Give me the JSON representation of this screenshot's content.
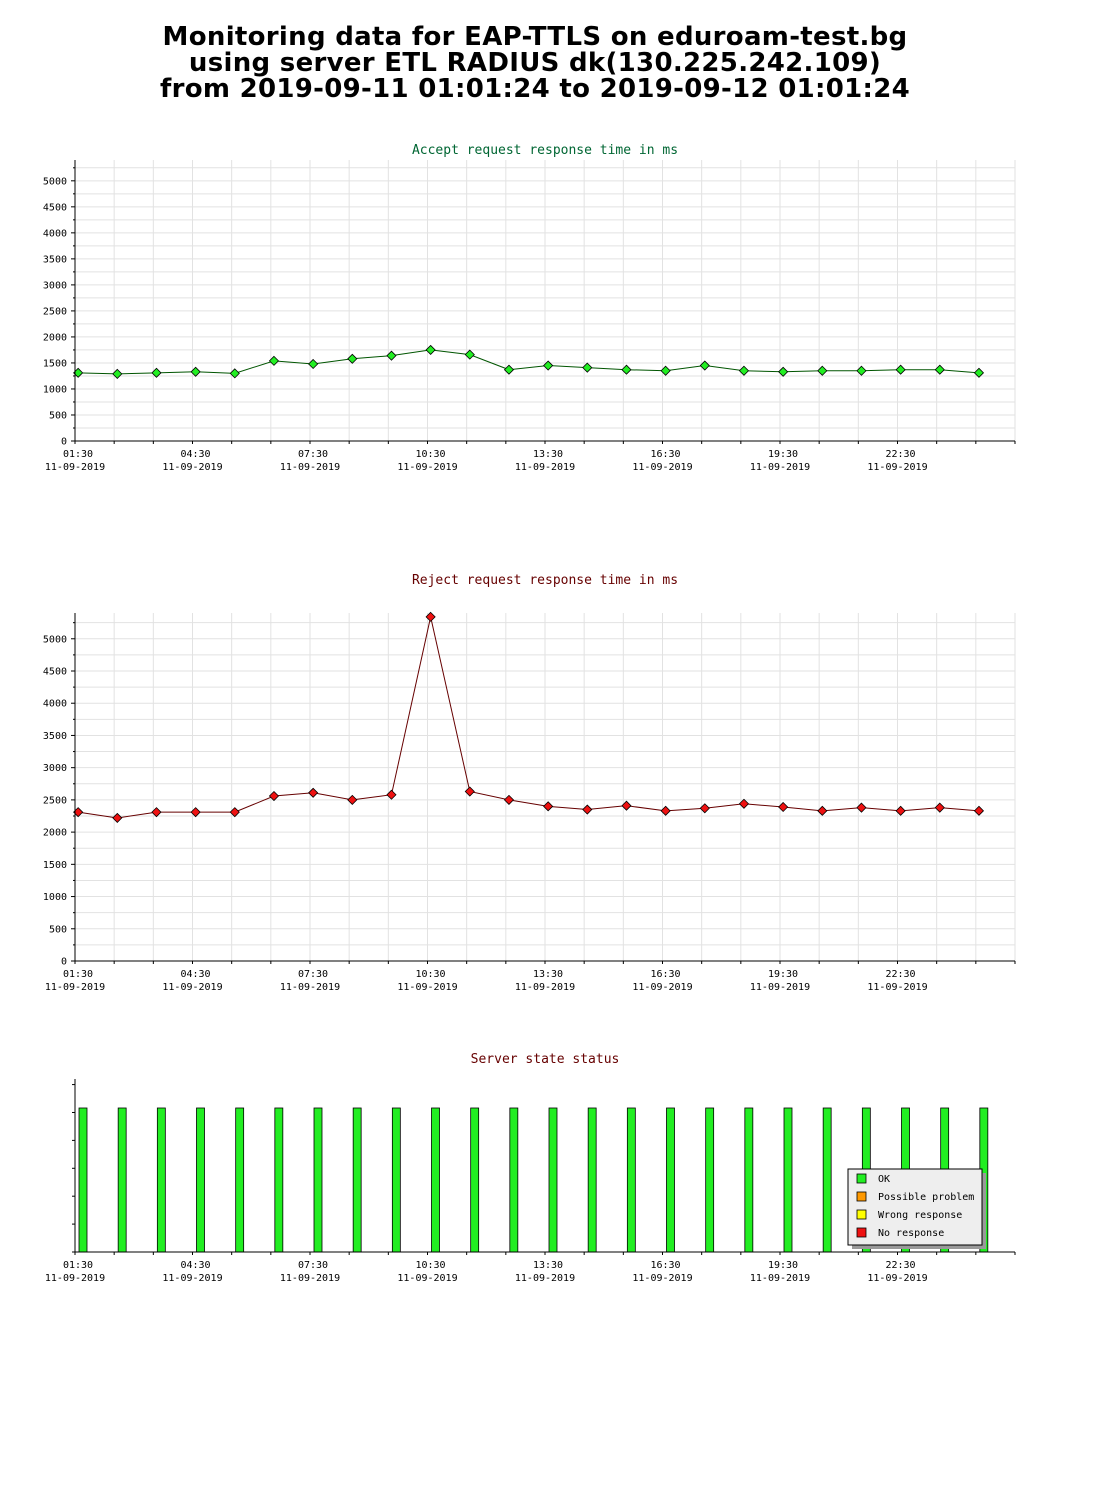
{
  "page": {
    "title_lines": [
      "Monitoring data for EAP-TTLS on eduroam-test.bg",
      "using server ETL RADIUS dk(130.225.242.109)",
      "from 2019-09-11 01:01:24 to 2019-09-12 01:01:24"
    ]
  },
  "chart_data": [
    {
      "type": "line",
      "title": "Accept request response time in ms",
      "title_color": "#006633",
      "marker_color": "#22ee22",
      "line_color": "#005500",
      "x_ticks": [
        {
          "time": "01:30",
          "date": "11-09-2019"
        },
        {
          "time": "04:30",
          "date": "11-09-2019"
        },
        {
          "time": "07:30",
          "date": "11-09-2019"
        },
        {
          "time": "10:30",
          "date": "11-09-2019"
        },
        {
          "time": "13:30",
          "date": "11-09-2019"
        },
        {
          "time": "16:30",
          "date": "11-09-2019"
        },
        {
          "time": "19:30",
          "date": "11-09-2019"
        },
        {
          "time": "22:30",
          "date": "11-09-2019"
        }
      ],
      "y_ticks": [
        0,
        500,
        1000,
        1500,
        2000,
        2500,
        3000,
        3500,
        4000,
        4500,
        5000
      ],
      "ylim": [
        0,
        5400
      ],
      "x": [
        "01:30",
        "02:30",
        "03:30",
        "04:30",
        "05:30",
        "06:30",
        "07:30",
        "08:30",
        "09:30",
        "10:30",
        "11:30",
        "12:30",
        "13:30",
        "14:30",
        "15:30",
        "16:30",
        "17:30",
        "18:30",
        "19:30",
        "20:30",
        "21:30",
        "22:30",
        "23:30",
        "00:30"
      ],
      "values": [
        1310,
        1290,
        1310,
        1330,
        1300,
        1540,
        1480,
        1580,
        1640,
        1750,
        1660,
        1370,
        1450,
        1410,
        1370,
        1350,
        1450,
        1350,
        1330,
        1350,
        1350,
        1370,
        1370,
        1310
      ]
    },
    {
      "type": "line",
      "title": "Reject request response time in ms",
      "title_color": "#660000",
      "marker_color": "#ee1111",
      "line_color": "#660000",
      "x_ticks": [
        {
          "time": "01:30",
          "date": "11-09-2019"
        },
        {
          "time": "04:30",
          "date": "11-09-2019"
        },
        {
          "time": "07:30",
          "date": "11-09-2019"
        },
        {
          "time": "10:30",
          "date": "11-09-2019"
        },
        {
          "time": "13:30",
          "date": "11-09-2019"
        },
        {
          "time": "16:30",
          "date": "11-09-2019"
        },
        {
          "time": "19:30",
          "date": "11-09-2019"
        },
        {
          "time": "22:30",
          "date": "11-09-2019"
        }
      ],
      "y_ticks": [
        0,
        500,
        1000,
        1500,
        2000,
        2500,
        3000,
        3500,
        4000,
        4500,
        5000
      ],
      "ylim": [
        0,
        5400
      ],
      "x": [
        "01:30",
        "02:30",
        "03:30",
        "04:30",
        "05:30",
        "06:30",
        "07:30",
        "08:30",
        "09:30",
        "10:30",
        "11:30",
        "12:30",
        "13:30",
        "14:30",
        "15:30",
        "16:30",
        "17:30",
        "18:30",
        "19:30",
        "20:30",
        "21:30",
        "22:30",
        "23:30",
        "00:30"
      ],
      "values": [
        2310,
        2220,
        2310,
        2310,
        2310,
        2560,
        2610,
        2500,
        2580,
        5340,
        2630,
        2500,
        2400,
        2350,
        2410,
        2330,
        2370,
        2440,
        2390,
        2330,
        2380,
        2330,
        2380,
        2330
      ]
    },
    {
      "type": "bar",
      "title": "Server state status",
      "title_color": "#660000",
      "x_ticks": [
        {
          "time": "01:30",
          "date": "11-09-2019"
        },
        {
          "time": "04:30",
          "date": "11-09-2019"
        },
        {
          "time": "07:30",
          "date": "11-09-2019"
        },
        {
          "time": "10:30",
          "date": "11-09-2019"
        },
        {
          "time": "13:30",
          "date": "11-09-2019"
        },
        {
          "time": "16:30",
          "date": "11-09-2019"
        },
        {
          "time": "19:30",
          "date": "11-09-2019"
        },
        {
          "time": "22:30",
          "date": "11-09-2019"
        }
      ],
      "x": [
        "01:30",
        "02:30",
        "03:30",
        "04:30",
        "05:30",
        "06:30",
        "07:30",
        "08:30",
        "09:30",
        "10:30",
        "11:30",
        "12:30",
        "13:30",
        "14:30",
        "15:30",
        "16:30",
        "17:30",
        "18:30",
        "19:30",
        "20:30",
        "21:30",
        "22:30",
        "23:30",
        "00:30"
      ],
      "states": [
        "OK",
        "OK",
        "OK",
        "OK",
        "OK",
        "OK",
        "OK",
        "OK",
        "OK",
        "OK",
        "OK",
        "OK",
        "OK",
        "OK",
        "OK",
        "OK",
        "OK",
        "OK",
        "OK",
        "OK",
        "OK",
        "OK",
        "OK",
        "OK"
      ],
      "legend": [
        {
          "label": "OK",
          "color": "#22ee22"
        },
        {
          "label": "Possible problem",
          "color": "#ff9900"
        },
        {
          "label": "Wrong response",
          "color": "#ffff00"
        },
        {
          "label": "No response",
          "color": "#ee1111"
        }
      ],
      "legend_position": "bottom-right",
      "grid": false
    }
  ]
}
